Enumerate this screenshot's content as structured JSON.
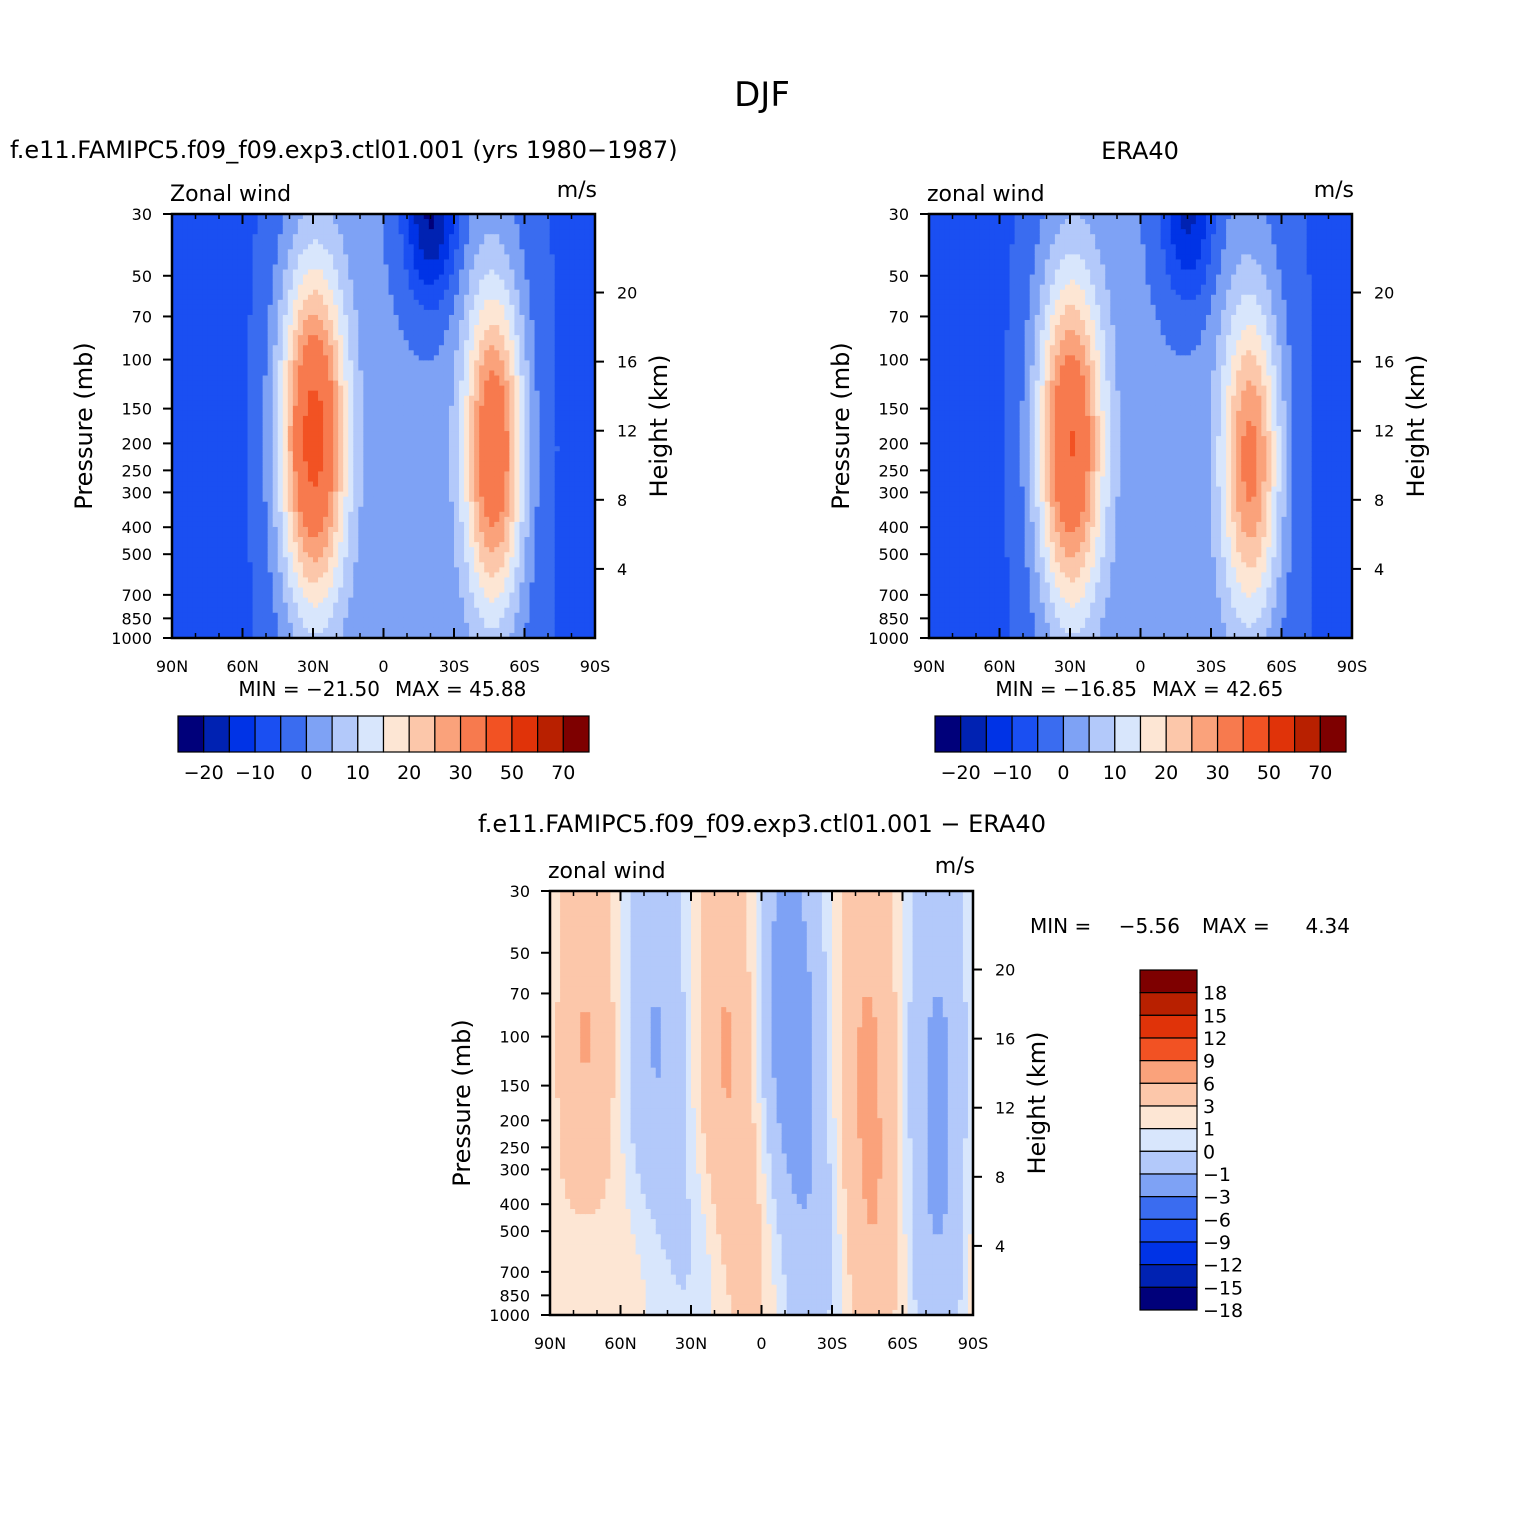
{
  "page": {
    "season": "DJF"
  },
  "panel_titles": {
    "model": "f.e11.FAMIPC5.f09_f09.exp3.ctl01.001 (yrs 1980−1987)",
    "obs": "ERA40",
    "diff": "f.e11.FAMIPC5.f09_f09.exp3.ctl01.001 − ERA40"
  },
  "colors": {
    "abs": [
      "#00007a",
      "#0022b2",
      "#0033e6",
      "#1a4ff2",
      "#3a6cf0",
      "#7ea2f5",
      "#b3c9fa",
      "#d8e6fc",
      "#fde6d4",
      "#fcc7aa",
      "#faa27b",
      "#f77a4e",
      "#f25223",
      "#e03309",
      "#b82000",
      "#7e0000"
    ],
    "diff": [
      "#00007a",
      "#0022b2",
      "#0033e6",
      "#1a4ff2",
      "#3a6cf0",
      "#7ea2f5",
      "#b3c9fa",
      "#d8e6fc",
      "#fde6d4",
      "#fcc7aa",
      "#faa27b",
      "#f25223",
      "#e03309",
      "#b82000",
      "#7e0000"
    ]
  },
  "chart_data": [
    {
      "id": "model",
      "type": "heatmap",
      "title": "f.e11.FAMIPC5.f09_f09.exp3.ctl01.001 (yrs 1980−1987)",
      "left_label": "Zonal wind",
      "units": "m/s",
      "ylabel": "Pressure (mb)",
      "ylabel_right": "Height (km)",
      "x_ticks": [
        "90N",
        "60N",
        "30N",
        "0",
        "30S",
        "60S",
        "90S"
      ],
      "y_ticks": [
        "30",
        "50",
        "70",
        "100",
        "150",
        "200",
        "250",
        "300",
        "400",
        "500",
        "700",
        "850",
        "1000"
      ],
      "y_ticks_right": [
        "4",
        "8",
        "12",
        "16",
        "20"
      ],
      "min_label": "MIN = −21.50",
      "max_label": "MAX = 45.88",
      "min": -21.5,
      "max": 45.88,
      "jets": [
        {
          "lat": 30,
          "p": 190,
          "peak": 45.88,
          "sx": 10,
          "sy": 1.0
        },
        {
          "lat": -47,
          "p": 210,
          "peak": 40,
          "sx": 9,
          "sy": 0.95
        },
        {
          "lat": -20,
          "p": 30,
          "peak": -21.5,
          "sx": 8,
          "sy": 0.5
        }
      ],
      "colorbar_ticks": [
        "−20",
        "−10",
        "0",
        "10",
        "20",
        "30",
        "50",
        "70"
      ]
    },
    {
      "id": "obs",
      "type": "heatmap",
      "title": "ERA40",
      "left_label": "zonal wind",
      "units": "m/s",
      "ylabel": "Pressure (mb)",
      "ylabel_right": "Height (km)",
      "x_ticks": [
        "90N",
        "60N",
        "30N",
        "0",
        "30S",
        "60S",
        "90S"
      ],
      "y_ticks": [
        "30",
        "50",
        "70",
        "100",
        "150",
        "200",
        "250",
        "300",
        "400",
        "500",
        "700",
        "850",
        "1000"
      ],
      "y_ticks_right": [
        "4",
        "8",
        "12",
        "16",
        "20"
      ],
      "min_label": "MIN = −16.85",
      "max_label": "MAX = 42.65",
      "min": -16.85,
      "max": 42.65,
      "jets": [
        {
          "lat": 30,
          "p": 200,
          "peak": 42.65,
          "sx": 10,
          "sy": 1.0
        },
        {
          "lat": -47,
          "p": 230,
          "peak": 34,
          "sx": 9,
          "sy": 0.95
        },
        {
          "lat": -20,
          "p": 30,
          "peak": -16.85,
          "sx": 8,
          "sy": 0.5
        }
      ],
      "colorbar_ticks": [
        "−20",
        "−10",
        "0",
        "10",
        "20",
        "30",
        "50",
        "70"
      ]
    },
    {
      "id": "diff",
      "type": "heatmap",
      "title": "f.e11.FAMIPC5.f09_f09.exp3.ctl01.001 − ERA40",
      "left_label": "zonal wind",
      "units": "m/s",
      "ylabel": "Pressure (mb)",
      "ylabel_right": "Height (km)",
      "x_ticks": [
        "90N",
        "60N",
        "30N",
        "0",
        "30S",
        "60S",
        "90S"
      ],
      "y_ticks": [
        "30",
        "50",
        "70",
        "100",
        "150",
        "200",
        "250",
        "300",
        "400",
        "500",
        "700",
        "850",
        "1000"
      ],
      "y_ticks_right": [
        "4",
        "8",
        "12",
        "16",
        "20"
      ],
      "min_label": "MIN =",
      "min_value": "−5.56",
      "max_label": "MAX =",
      "max_value": "4.34",
      "min": -5.56,
      "max": 4.34,
      "colorbar_levels": [
        -18,
        -15,
        -12,
        -9,
        -6,
        -3,
        -1,
        0,
        1,
        3,
        6,
        9,
        12,
        15,
        18
      ],
      "colorbar_ticks": [
        "18",
        "15",
        "12",
        "9",
        "6",
        "3",
        "1",
        "0",
        "−1",
        "−3",
        "−6",
        "−9",
        "−12",
        "−15",
        "−18"
      ]
    }
  ]
}
